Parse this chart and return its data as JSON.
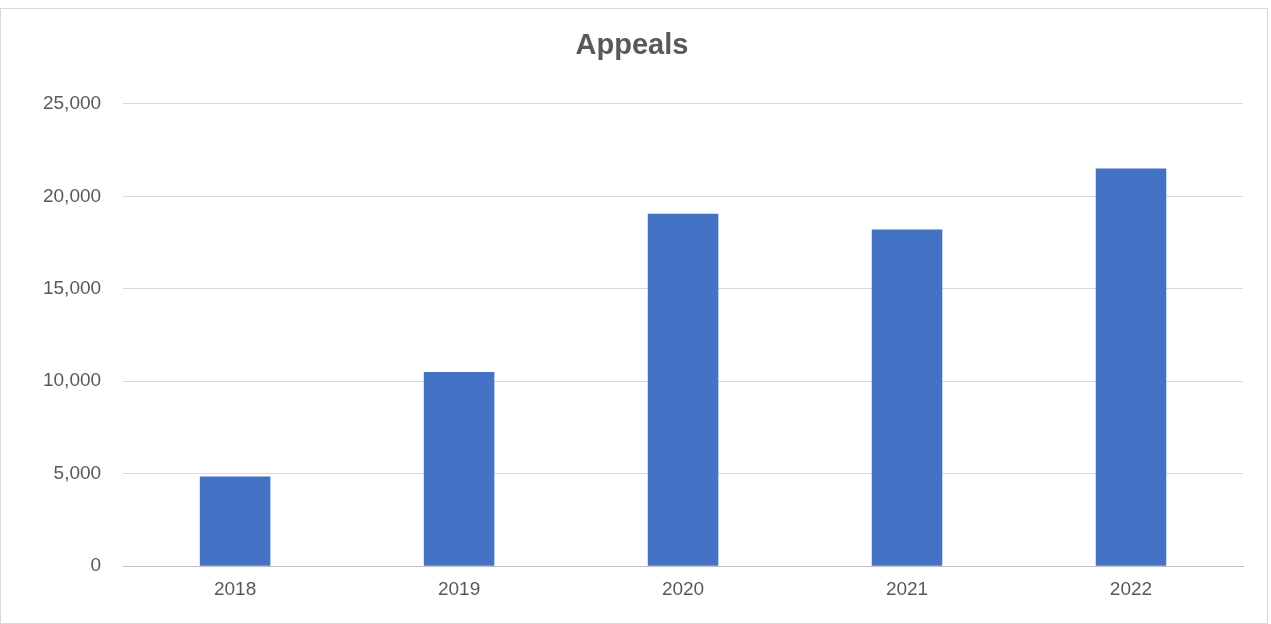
{
  "chart_data": {
    "type": "bar",
    "title": "Appeals",
    "categories": [
      "2018",
      "2019",
      "2020",
      "2021",
      "2022"
    ],
    "values": [
      4850,
      10500,
      19050,
      18200,
      21500
    ],
    "color": "#4472c4",
    "ylim": [
      0,
      25000
    ],
    "yticks": [
      0,
      {
        "value": 5000,
        "label": "5,000"
      },
      {
        "value": 10000,
        "label": "10,000"
      },
      {
        "value": 15000,
        "label": "15,000"
      },
      {
        "value": 20000,
        "label": "20,000"
      },
      {
        "value": 25000,
        "label": "25,000"
      }
    ],
    "grid": "y"
  }
}
